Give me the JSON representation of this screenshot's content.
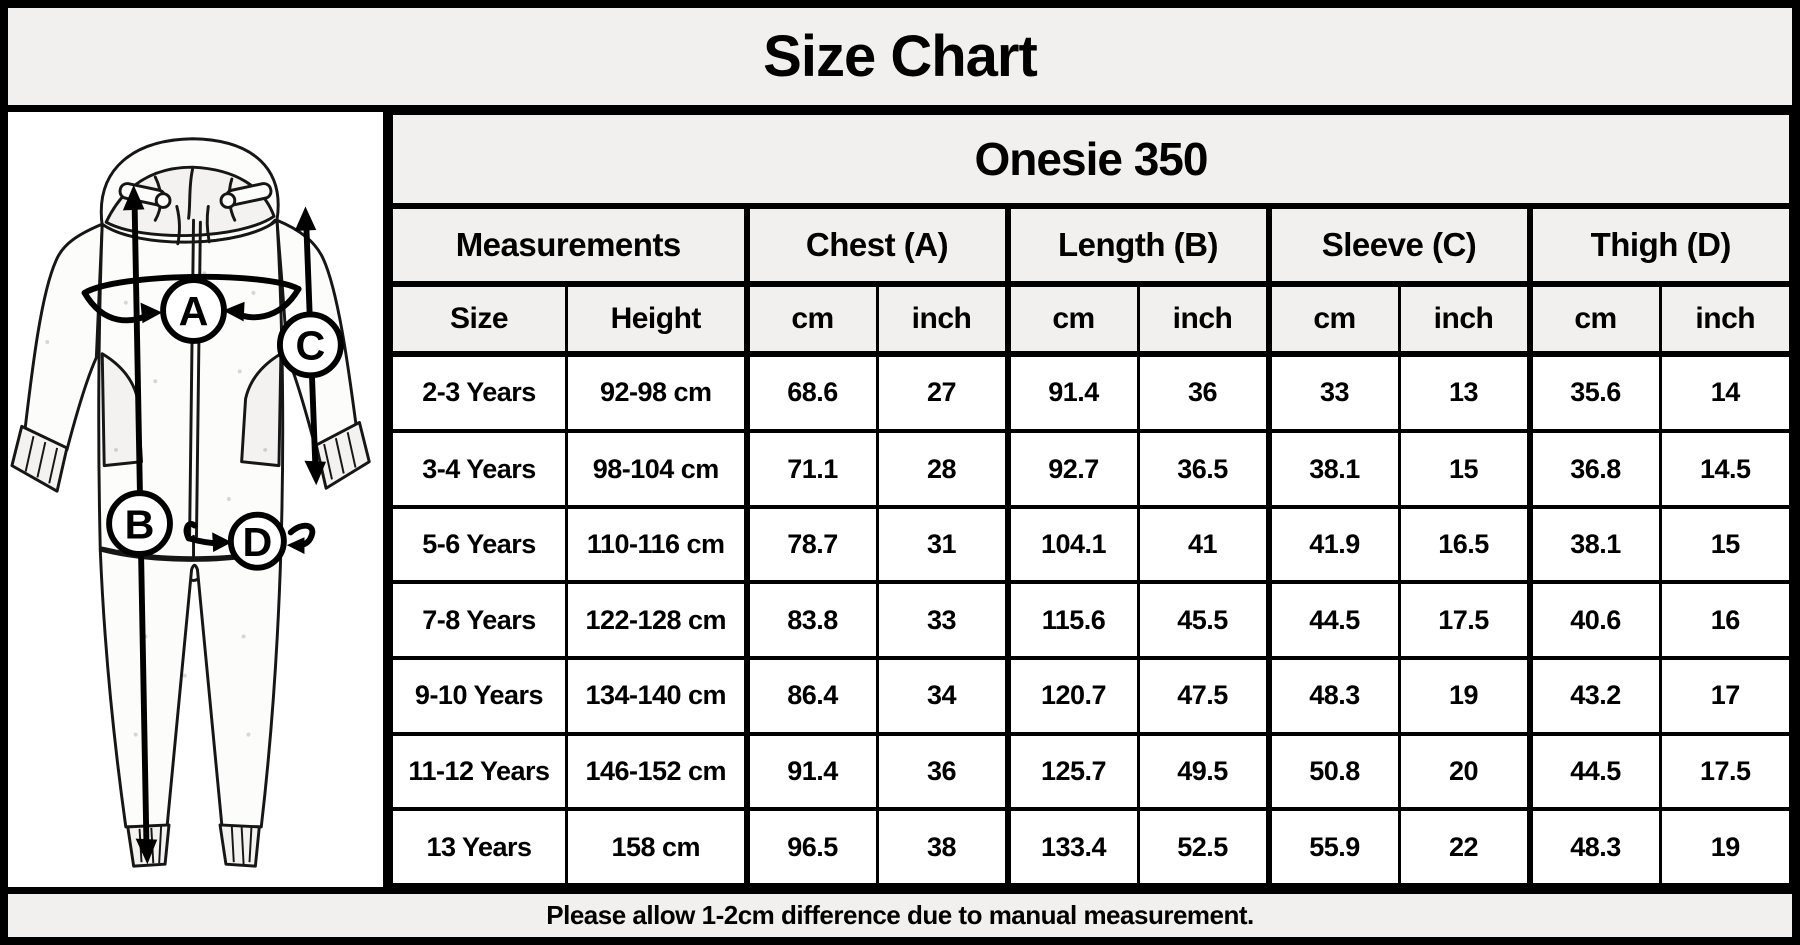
{
  "title": "Size Chart",
  "product_title": "Onesie 350",
  "footer_note": "Please allow 1-2cm difference due to manual measurement.",
  "diagram": {
    "description": "Hooded zip-up onesie line drawing with measurement arrows",
    "label_a": "A",
    "label_b": "B",
    "label_c": "C",
    "label_d": "D"
  },
  "table": {
    "measurements_label": "Measurements",
    "group_labels": [
      "Chest (A)",
      "Length (B)",
      "Sleeve (C)",
      "Thigh (D)"
    ],
    "size_label": "Size",
    "height_label": "Height",
    "cm_label": "cm",
    "inch_label": "inch"
  },
  "chart_data": {
    "type": "table",
    "title": "Size Chart",
    "subtitle": "Onesie 350",
    "columns": [
      "Size",
      "Height",
      "Chest (A) cm",
      "Chest (A) inch",
      "Length (B) cm",
      "Length (B) inch",
      "Sleeve (C) cm",
      "Sleeve (C) inch",
      "Thigh (D) cm",
      "Thigh (D) inch"
    ],
    "rows": [
      [
        "2-3 Years",
        "92-98 cm",
        "68.6",
        "27",
        "91.4",
        "36",
        "33",
        "13",
        "35.6",
        "14"
      ],
      [
        "3-4 Years",
        "98-104 cm",
        "71.1",
        "28",
        "92.7",
        "36.5",
        "38.1",
        "15",
        "36.8",
        "14.5"
      ],
      [
        "5-6 Years",
        "110-116 cm",
        "78.7",
        "31",
        "104.1",
        "41",
        "41.9",
        "16.5",
        "38.1",
        "15"
      ],
      [
        "7-8 Years",
        "122-128 cm",
        "83.8",
        "33",
        "115.6",
        "45.5",
        "44.5",
        "17.5",
        "40.6",
        "16"
      ],
      [
        "9-10 Years",
        "134-140 cm",
        "86.4",
        "34",
        "120.7",
        "47.5",
        "48.3",
        "19",
        "43.2",
        "17"
      ],
      [
        "11-12 Years",
        "146-152 cm",
        "91.4",
        "36",
        "125.7",
        "49.5",
        "50.8",
        "20",
        "44.5",
        "17.5"
      ],
      [
        "13 Years",
        "158 cm",
        "96.5",
        "38",
        "133.4",
        "52.5",
        "55.9",
        "22",
        "48.3",
        "19"
      ]
    ],
    "note": "Please allow 1-2cm difference due to manual measurement."
  },
  "colors": {
    "band_bg": "#f1f0ee",
    "cell_bg": "#ffffff",
    "border": "#000000",
    "text": "#000000"
  }
}
